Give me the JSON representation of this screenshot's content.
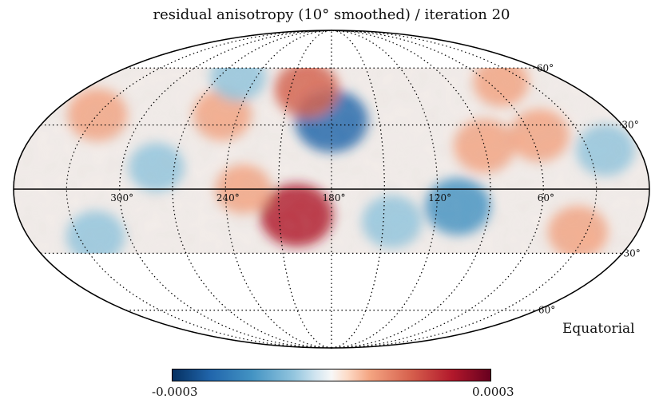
{
  "title": "residual anisotropy (10° smoothed) / iteration 20",
  "frame": "Equatorial",
  "projection": "Mollweide",
  "colorbar": {
    "min_label": "-0.0003",
    "max_label": "0.0003",
    "colormap": "RdBu_r",
    "stops": [
      "#053061",
      "#2166ac",
      "#4393c3",
      "#92c5de",
      "#d1e5f0",
      "#f7f7f7",
      "#fddbc7",
      "#f4a582",
      "#d6604d",
      "#b2182b",
      "#67001f"
    ]
  },
  "coverage": {
    "dec_min": -30,
    "dec_max": 60
  },
  "graticule": {
    "longitude_labels": [
      {
        "lon": 300,
        "text": "300°"
      },
      {
        "lon": 240,
        "text": "240°"
      },
      {
        "lon": 180,
        "text": "180°"
      },
      {
        "lon": 120,
        "text": "120°"
      },
      {
        "lon": 60,
        "text": "60°"
      }
    ],
    "latitude_labels": [
      {
        "lat": 60,
        "text": "60°"
      },
      {
        "lat": 30,
        "text": "30°"
      },
      {
        "lat": -30,
        "text": "-30°"
      },
      {
        "lat": -60,
        "text": "-60°"
      }
    ]
  },
  "features": [
    {
      "name": "blue-hotspot-near-180",
      "lon": 180,
      "lat": 32,
      "value": -0.00022
    },
    {
      "name": "red-band-near-200",
      "lon": 198,
      "lat": 48,
      "value": 0.00016
    },
    {
      "name": "red-region-south-200",
      "lon": 200,
      "lat": -12,
      "value": 0.00022
    },
    {
      "name": "blue-region-110",
      "lon": 108,
      "lat": -8,
      "value": -0.00017
    },
    {
      "name": "blue-region-140",
      "lon": 145,
      "lat": -15,
      "value": -0.00013
    },
    {
      "name": "red-region-90",
      "lon": 90,
      "lat": 20,
      "value": 0.00014
    },
    {
      "name": "red-region-55",
      "lon": 55,
      "lat": 25,
      "value": 0.00013
    },
    {
      "name": "red-region-30-south",
      "lon": 35,
      "lat": -20,
      "value": 0.00013
    },
    {
      "name": "blue-region-20",
      "lon": 20,
      "lat": 18,
      "value": -0.00012
    },
    {
      "name": "red-region-330",
      "lon": 330,
      "lat": 35,
      "value": 0.00013
    },
    {
      "name": "blue-region-320-south",
      "lon": 320,
      "lat": -22,
      "value": -0.00012
    },
    {
      "name": "red-region-250",
      "lon": 250,
      "lat": 35,
      "value": 0.00012
    },
    {
      "name": "blue-region-280",
      "lon": 280,
      "lat": 10,
      "value": -0.0001
    },
    {
      "name": "red-region-230",
      "lon": 230,
      "lat": 0,
      "value": 0.0001
    },
    {
      "name": "blue-region-250-north",
      "lon": 255,
      "lat": 55,
      "value": -0.0001
    },
    {
      "name": "red-region-50-north",
      "lon": 50,
      "lat": 52,
      "value": 0.0001
    }
  ]
}
